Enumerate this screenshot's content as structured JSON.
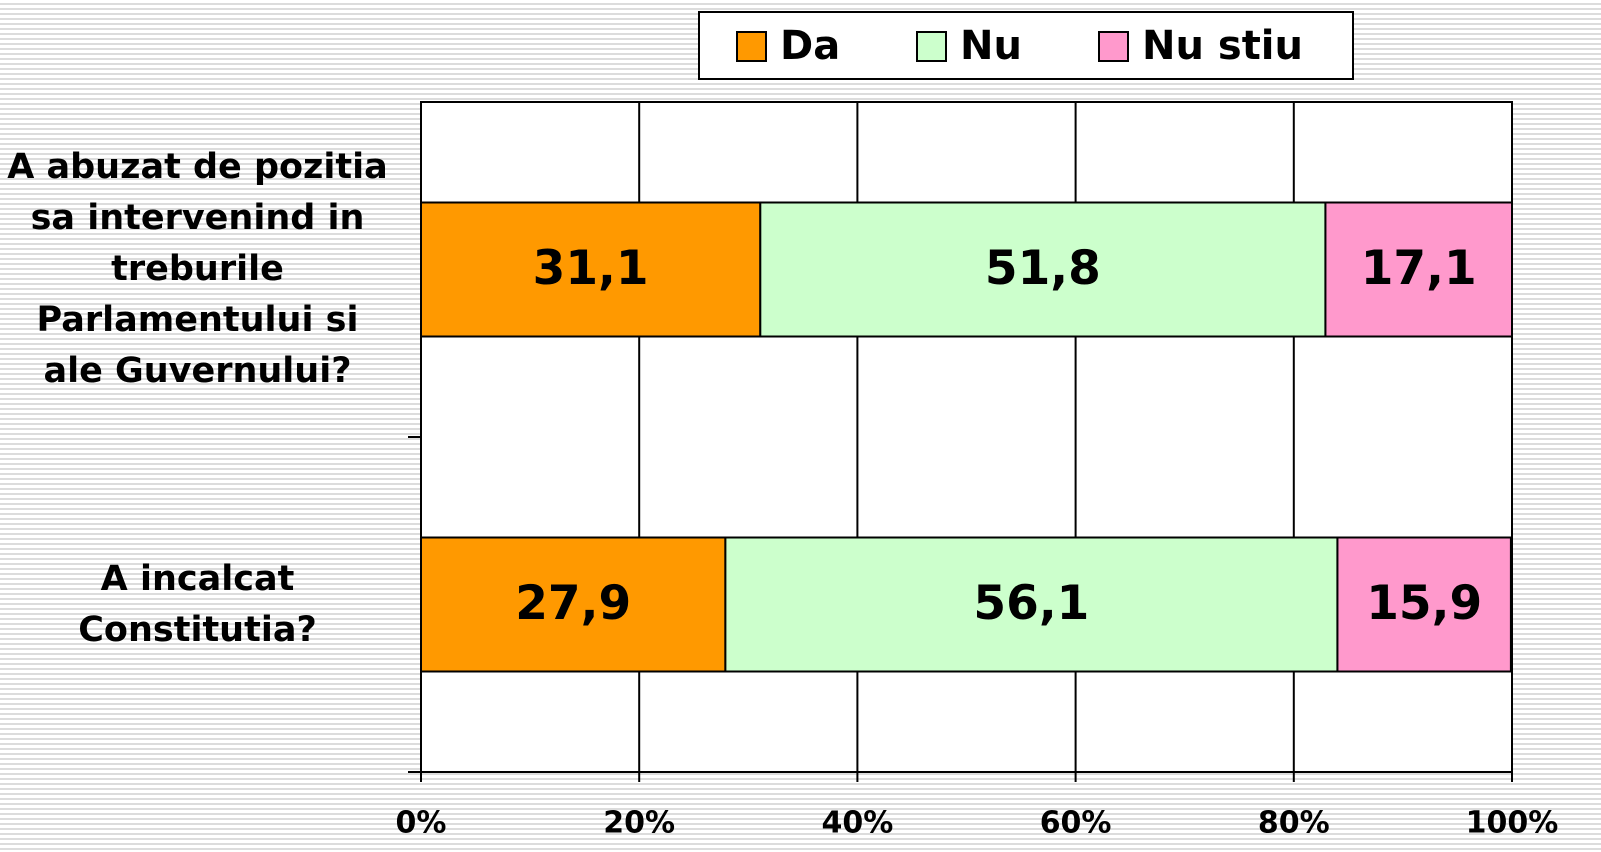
{
  "chart_data": {
    "type": "stacked_bar_horizontal",
    "categories": [
      "A abuzat de pozitia sa intervenind in treburile Parlamentului si ale Guvernului?",
      "A incalcat Constitutia?"
    ],
    "series": [
      {
        "name": "Da",
        "color": "#ff9900",
        "values": [
          31.1,
          27.9
        ],
        "value_labels": [
          "31,1",
          "27,9"
        ]
      },
      {
        "name": "Nu",
        "color": "#ccffcc",
        "values": [
          51.8,
          56.1
        ],
        "value_labels": [
          "51,8",
          "56,1"
        ]
      },
      {
        "name": "Nu stiu",
        "color": "#ff99cc",
        "values": [
          17.1,
          15.9
        ],
        "value_labels": [
          "17,1",
          "15,9"
        ]
      }
    ],
    "xlim": [
      0,
      100
    ],
    "xticks": [
      {
        "value": 0,
        "label": "0%"
      },
      {
        "value": 20,
        "label": "20%"
      },
      {
        "value": 40,
        "label": "40%"
      },
      {
        "value": 60,
        "label": "60%"
      },
      {
        "value": 80,
        "label": "80%"
      },
      {
        "value": 100,
        "label": "100%"
      }
    ],
    "grid": true,
    "legend": "top"
  }
}
